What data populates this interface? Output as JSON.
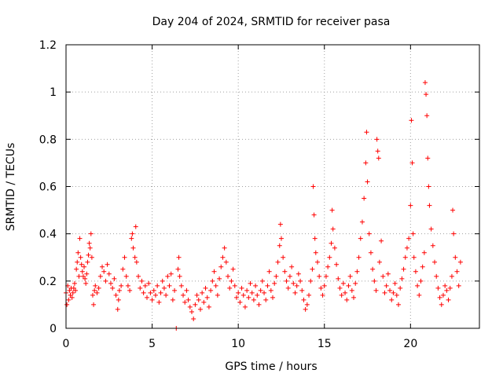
{
  "chart_data": {
    "type": "scatter",
    "title": "Day 204 of 2024, SRMTID for receiver pasa",
    "xlabel": "GPS time / hours",
    "ylabel": "SRMTID / TECUs",
    "xlim": [
      0,
      24
    ],
    "ylim": [
      0,
      1.2
    ],
    "xticks": [
      0,
      5,
      10,
      15,
      20
    ],
    "yticks": [
      0,
      0.2,
      0.4,
      0.6,
      0.8,
      1,
      1.2
    ],
    "xtick_labels": [
      "0",
      "5",
      "10",
      "15",
      "20"
    ],
    "ytick_labels": [
      "0",
      "0.2",
      "0.4",
      "0.6",
      "0.8",
      "1",
      "1.2"
    ],
    "grid": true,
    "marker": "+",
    "color": "#ff0000",
    "series": [
      {
        "name": "SRMTID",
        "points": [
          [
            0.0,
            0.15
          ],
          [
            0.05,
            0.1
          ],
          [
            0.1,
            0.18
          ],
          [
            0.15,
            0.12
          ],
          [
            0.2,
            0.16
          ],
          [
            0.25,
            0.14
          ],
          [
            0.3,
            0.17
          ],
          [
            0.35,
            0.13
          ],
          [
            0.4,
            0.15
          ],
          [
            0.45,
            0.17
          ],
          [
            0.5,
            0.19
          ],
          [
            0.55,
            0.16
          ],
          [
            0.6,
            0.25
          ],
          [
            0.65,
            0.28
          ],
          [
            0.7,
            0.32
          ],
          [
            0.75,
            0.22
          ],
          [
            0.8,
            0.38
          ],
          [
            0.85,
            0.3
          ],
          [
            0.9,
            0.27
          ],
          [
            0.95,
            0.24
          ],
          [
            1.0,
            0.22
          ],
          [
            1.05,
            0.26
          ],
          [
            1.1,
            0.21
          ],
          [
            1.15,
            0.19
          ],
          [
            1.2,
            0.23
          ],
          [
            1.25,
            0.28
          ],
          [
            1.3,
            0.31
          ],
          [
            1.35,
            0.36
          ],
          [
            1.4,
            0.34
          ],
          [
            1.45,
            0.4
          ],
          [
            1.5,
            0.3
          ],
          [
            1.55,
            0.14
          ],
          [
            1.6,
            0.1
          ],
          [
            1.65,
            0.16
          ],
          [
            1.7,
            0.18
          ],
          [
            1.8,
            0.15
          ],
          [
            1.9,
            0.17
          ],
          [
            2.0,
            0.22
          ],
          [
            2.1,
            0.26
          ],
          [
            2.2,
            0.24
          ],
          [
            2.3,
            0.2
          ],
          [
            2.4,
            0.27
          ],
          [
            2.5,
            0.23
          ],
          [
            2.6,
            0.19
          ],
          [
            2.7,
            0.17
          ],
          [
            2.8,
            0.21
          ],
          [
            2.9,
            0.14
          ],
          [
            3.0,
            0.08
          ],
          [
            3.05,
            0.12
          ],
          [
            3.1,
            0.16
          ],
          [
            3.2,
            0.18
          ],
          [
            3.3,
            0.25
          ],
          [
            3.4,
            0.3
          ],
          [
            3.5,
            0.22
          ],
          [
            3.6,
            0.18
          ],
          [
            3.7,
            0.16
          ],
          [
            3.8,
            0.38
          ],
          [
            3.85,
            0.4
          ],
          [
            3.9,
            0.34
          ],
          [
            4.0,
            0.3
          ],
          [
            4.05,
            0.43
          ],
          [
            4.1,
            0.28
          ],
          [
            4.2,
            0.22
          ],
          [
            4.3,
            0.17
          ],
          [
            4.4,
            0.2
          ],
          [
            4.5,
            0.15
          ],
          [
            4.6,
            0.18
          ],
          [
            4.7,
            0.13
          ],
          [
            4.8,
            0.19
          ],
          [
            4.9,
            0.15
          ],
          [
            5.0,
            0.12
          ],
          [
            5.1,
            0.16
          ],
          [
            5.2,
            0.14
          ],
          [
            5.3,
            0.18
          ],
          [
            5.4,
            0.11
          ],
          [
            5.5,
            0.15
          ],
          [
            5.6,
            0.2
          ],
          [
            5.7,
            0.17
          ],
          [
            5.8,
            0.14
          ],
          [
            5.9,
            0.22
          ],
          [
            6.0,
            0.18
          ],
          [
            6.1,
            0.23
          ],
          [
            6.2,
            0.12
          ],
          [
            6.3,
            0.16
          ],
          [
            6.4,
            0.0
          ],
          [
            6.5,
            0.25
          ],
          [
            6.55,
            0.3
          ],
          [
            6.6,
            0.22
          ],
          [
            6.7,
            0.18
          ],
          [
            6.8,
            0.14
          ],
          [
            6.9,
            0.11
          ],
          [
            7.0,
            0.16
          ],
          [
            7.1,
            0.12
          ],
          [
            7.2,
            0.09
          ],
          [
            7.3,
            0.07
          ],
          [
            7.4,
            0.04
          ],
          [
            7.5,
            0.1
          ],
          [
            7.6,
            0.14
          ],
          [
            7.7,
            0.12
          ],
          [
            7.8,
            0.08
          ],
          [
            7.9,
            0.15
          ],
          [
            8.0,
            0.11
          ],
          [
            8.1,
            0.17
          ],
          [
            8.2,
            0.13
          ],
          [
            8.3,
            0.09
          ],
          [
            8.4,
            0.16
          ],
          [
            8.5,
            0.2
          ],
          [
            8.6,
            0.24
          ],
          [
            8.7,
            0.18
          ],
          [
            8.8,
            0.14
          ],
          [
            8.9,
            0.21
          ],
          [
            9.0,
            0.26
          ],
          [
            9.1,
            0.3
          ],
          [
            9.2,
            0.34
          ],
          [
            9.3,
            0.28
          ],
          [
            9.4,
            0.22
          ],
          [
            9.5,
            0.17
          ],
          [
            9.6,
            0.2
          ],
          [
            9.7,
            0.25
          ],
          [
            9.8,
            0.18
          ],
          [
            9.9,
            0.13
          ],
          [
            10.0,
            0.15
          ],
          [
            10.1,
            0.11
          ],
          [
            10.2,
            0.17
          ],
          [
            10.3,
            0.14
          ],
          [
            10.4,
            0.09
          ],
          [
            10.5,
            0.16
          ],
          [
            10.6,
            0.13
          ],
          [
            10.7,
            0.19
          ],
          [
            10.8,
            0.15
          ],
          [
            10.9,
            0.12
          ],
          [
            11.0,
            0.18
          ],
          [
            11.1,
            0.14
          ],
          [
            11.2,
            0.1
          ],
          [
            11.3,
            0.16
          ],
          [
            11.4,
            0.2
          ],
          [
            11.5,
            0.15
          ],
          [
            11.6,
            0.12
          ],
          [
            11.7,
            0.18
          ],
          [
            11.8,
            0.24
          ],
          [
            11.9,
            0.16
          ],
          [
            12.0,
            0.13
          ],
          [
            12.1,
            0.19
          ],
          [
            12.2,
            0.22
          ],
          [
            12.3,
            0.28
          ],
          [
            12.4,
            0.35
          ],
          [
            12.45,
            0.44
          ],
          [
            12.5,
            0.38
          ],
          [
            12.6,
            0.3
          ],
          [
            12.7,
            0.24
          ],
          [
            12.8,
            0.2
          ],
          [
            12.9,
            0.17
          ],
          [
            13.0,
            0.22
          ],
          [
            13.1,
            0.26
          ],
          [
            13.2,
            0.19
          ],
          [
            13.3,
            0.15
          ],
          [
            13.4,
            0.18
          ],
          [
            13.5,
            0.23
          ],
          [
            13.6,
            0.2
          ],
          [
            13.7,
            0.16
          ],
          [
            13.8,
            0.12
          ],
          [
            13.9,
            0.08
          ],
          [
            14.0,
            0.1
          ],
          [
            14.1,
            0.14
          ],
          [
            14.2,
            0.2
          ],
          [
            14.3,
            0.25
          ],
          [
            14.35,
            0.6
          ],
          [
            14.4,
            0.48
          ],
          [
            14.45,
            0.38
          ],
          [
            14.5,
            0.32
          ],
          [
            14.6,
            0.28
          ],
          [
            14.7,
            0.22
          ],
          [
            14.8,
            0.17
          ],
          [
            14.9,
            0.14
          ],
          [
            15.0,
            0.18
          ],
          [
            15.1,
            0.22
          ],
          [
            15.2,
            0.26
          ],
          [
            15.3,
            0.3
          ],
          [
            15.4,
            0.36
          ],
          [
            15.45,
            0.5
          ],
          [
            15.5,
            0.42
          ],
          [
            15.6,
            0.34
          ],
          [
            15.7,
            0.27
          ],
          [
            15.8,
            0.21
          ],
          [
            15.9,
            0.17
          ],
          [
            16.0,
            0.14
          ],
          [
            16.1,
            0.19
          ],
          [
            16.2,
            0.15
          ],
          [
            16.3,
            0.12
          ],
          [
            16.4,
            0.18
          ],
          [
            16.5,
            0.22
          ],
          [
            16.6,
            0.16
          ],
          [
            16.7,
            0.13
          ],
          [
            16.8,
            0.19
          ],
          [
            16.9,
            0.24
          ],
          [
            17.0,
            0.3
          ],
          [
            17.1,
            0.38
          ],
          [
            17.2,
            0.45
          ],
          [
            17.3,
            0.55
          ],
          [
            17.4,
            0.7
          ],
          [
            17.45,
            0.83
          ],
          [
            17.5,
            0.62
          ],
          [
            17.6,
            0.4
          ],
          [
            17.7,
            0.32
          ],
          [
            17.8,
            0.25
          ],
          [
            17.9,
            0.2
          ],
          [
            18.0,
            0.16
          ],
          [
            18.05,
            0.8
          ],
          [
            18.1,
            0.75
          ],
          [
            18.15,
            0.72
          ],
          [
            18.2,
            0.28
          ],
          [
            18.3,
            0.37
          ],
          [
            18.4,
            0.22
          ],
          [
            18.5,
            0.15
          ],
          [
            18.6,
            0.18
          ],
          [
            18.7,
            0.23
          ],
          [
            18.8,
            0.16
          ],
          [
            18.9,
            0.12
          ],
          [
            19.0,
            0.15
          ],
          [
            19.1,
            0.19
          ],
          [
            19.2,
            0.14
          ],
          [
            19.3,
            0.1
          ],
          [
            19.4,
            0.17
          ],
          [
            19.5,
            0.21
          ],
          [
            19.6,
            0.25
          ],
          [
            19.7,
            0.3
          ],
          [
            19.8,
            0.34
          ],
          [
            19.9,
            0.38
          ],
          [
            20.0,
            0.52
          ],
          [
            20.05,
            0.88
          ],
          [
            20.1,
            0.7
          ],
          [
            20.15,
            0.4
          ],
          [
            20.2,
            0.3
          ],
          [
            20.3,
            0.24
          ],
          [
            20.4,
            0.18
          ],
          [
            20.5,
            0.14
          ],
          [
            20.6,
            0.2
          ],
          [
            20.7,
            0.26
          ],
          [
            20.8,
            0.32
          ],
          [
            20.85,
            1.04
          ],
          [
            20.9,
            0.99
          ],
          [
            20.95,
            0.9
          ],
          [
            21.0,
            0.72
          ],
          [
            21.05,
            0.6
          ],
          [
            21.1,
            0.52
          ],
          [
            21.2,
            0.42
          ],
          [
            21.3,
            0.35
          ],
          [
            21.4,
            0.28
          ],
          [
            21.5,
            0.22
          ],
          [
            21.6,
            0.17
          ],
          [
            21.7,
            0.13
          ],
          [
            21.8,
            0.1
          ],
          [
            21.9,
            0.14
          ],
          [
            22.0,
            0.18
          ],
          [
            22.1,
            0.16
          ],
          [
            22.2,
            0.12
          ],
          [
            22.3,
            0.17
          ],
          [
            22.4,
            0.22
          ],
          [
            22.45,
            0.5
          ],
          [
            22.5,
            0.4
          ],
          [
            22.6,
            0.3
          ],
          [
            22.7,
            0.24
          ],
          [
            22.8,
            0.18
          ],
          [
            22.9,
            0.28
          ]
        ]
      }
    ]
  }
}
